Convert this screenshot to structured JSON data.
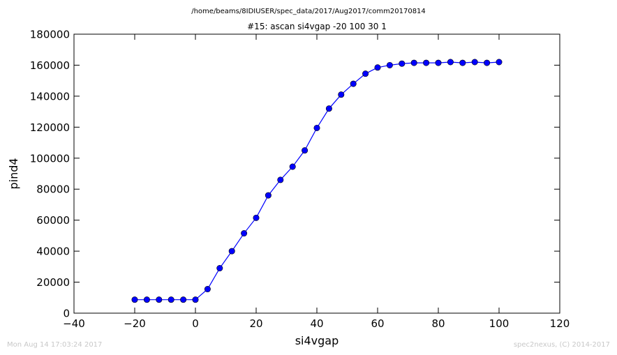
{
  "header": {
    "path": "/home/beams/8IDIUSER/spec_data/2017/Aug2017/comm20170814",
    "scan_title": "#15: ascan  si4vgap -20 100  30 1"
  },
  "footer": {
    "timestamp": "Mon Aug 14 17:03:24 2017",
    "credit": "spec2nexus, (C) 2014-2017"
  },
  "chart_data": {
    "type": "line",
    "title": "#15: ascan  si4vgap -20 100  30 1",
    "xlabel": "si4vgap",
    "ylabel": "pind4",
    "xlim": [
      -40,
      120
    ],
    "ylim": [
      0,
      180000
    ],
    "xticks": [
      "−40",
      "−20",
      "0",
      "20",
      "40",
      "60",
      "80",
      "100",
      "120"
    ],
    "yticks": [
      "0",
      "20000",
      "40000",
      "60000",
      "80000",
      "100000",
      "120000",
      "140000",
      "160000",
      "180000"
    ],
    "xtick_values": [
      -40,
      -20,
      0,
      20,
      40,
      60,
      80,
      100,
      120
    ],
    "ytick_values": [
      0,
      20000,
      40000,
      60000,
      80000,
      100000,
      120000,
      140000,
      160000,
      180000
    ],
    "grid": false,
    "series": [
      {
        "color": "#0000ff",
        "marker": "circle",
        "x": [
          -20,
          -16,
          -12,
          -8,
          -4,
          0,
          4,
          8,
          12,
          16,
          20,
          24,
          28,
          32,
          36,
          40,
          44,
          48,
          52,
          56,
          60,
          64,
          68,
          72,
          76,
          80,
          84,
          88,
          92,
          96,
          100
        ],
        "y": [
          8700,
          8700,
          8700,
          8700,
          8700,
          8700,
          15500,
          29000,
          40000,
          51500,
          61500,
          76000,
          86000,
          94500,
          105000,
          119500,
          132000,
          141000,
          148000,
          154500,
          158500,
          160000,
          161000,
          161500,
          161500,
          161500,
          162000,
          161500,
          162000,
          161500,
          162000
        ]
      }
    ]
  }
}
